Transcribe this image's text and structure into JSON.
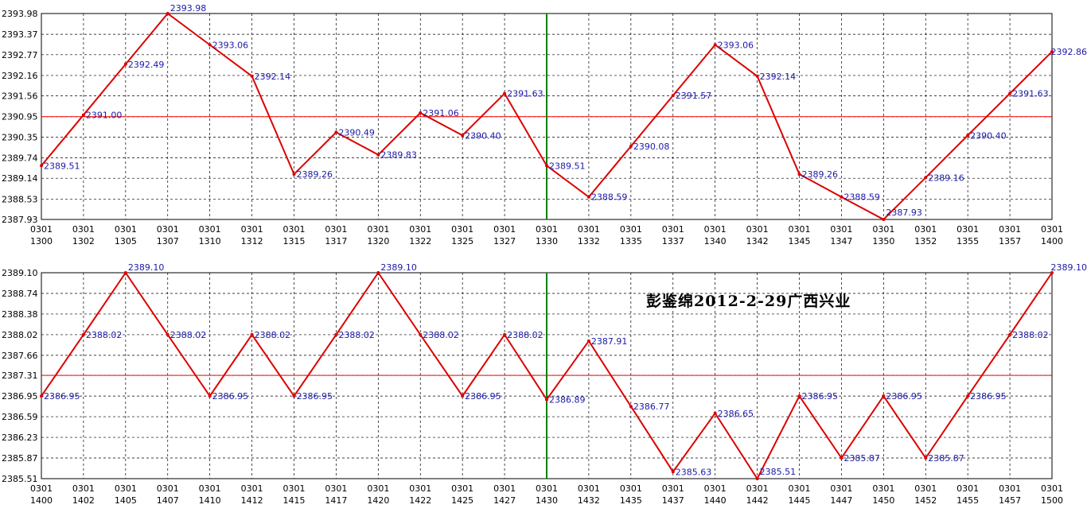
{
  "annotation": "彭鉴绵2012-2-29广西兴业",
  "colors": {
    "line": "#dd0000",
    "reference": "#ff0000",
    "midline": "#008000",
    "label": "#1a1aa8",
    "grid": "#000000"
  },
  "chart_data": [
    {
      "type": "line",
      "grid": true,
      "reference_line": 2390.95,
      "ylim": [
        2387.93,
        2393.98
      ],
      "yticks": [
        "2387.93",
        "2388.53",
        "2389.14",
        "2389.74",
        "2390.35",
        "2390.95",
        "2391.56",
        "2392.16",
        "2392.77",
        "2393.37",
        "2393.98"
      ],
      "xticks": [
        [
          "0301",
          "1300"
        ],
        [
          "0301",
          "1302"
        ],
        [
          "0301",
          "1305"
        ],
        [
          "0301",
          "1307"
        ],
        [
          "0301",
          "1310"
        ],
        [
          "0301",
          "1312"
        ],
        [
          "0301",
          "1315"
        ],
        [
          "0301",
          "1317"
        ],
        [
          "0301",
          "1320"
        ],
        [
          "0301",
          "1322"
        ],
        [
          "0301",
          "1325"
        ],
        [
          "0301",
          "1327"
        ],
        [
          "0301",
          "1330"
        ],
        [
          "0301",
          "1332"
        ],
        [
          "0301",
          "1335"
        ],
        [
          "0301",
          "1337"
        ],
        [
          "0301",
          "1340"
        ],
        [
          "0301",
          "1342"
        ],
        [
          "0301",
          "1345"
        ],
        [
          "0301",
          "1347"
        ],
        [
          "0301",
          "1350"
        ],
        [
          "0301",
          "1352"
        ],
        [
          "0301",
          "1355"
        ],
        [
          "0301",
          "1357"
        ],
        [
          "0301",
          "1400"
        ]
      ],
      "vertical_marker_index": 12,
      "series": [
        {
          "values": [
            2389.51,
            2391.0,
            2392.49,
            2393.98,
            2393.06,
            2392.14,
            2389.26,
            2390.49,
            2389.83,
            2391.06,
            2390.4,
            2391.63,
            2389.51,
            2388.59,
            2390.08,
            2391.57,
            2393.06,
            2392.14,
            2389.26,
            2388.59,
            2387.93,
            2389.16,
            2390.4,
            2391.63,
            2392.86
          ]
        }
      ],
      "labels": [
        "2389.51",
        "2391.00",
        "2392.49",
        "2393.98",
        "2393.06",
        "2392.14",
        "2389.26",
        "2390.49",
        "2389.83",
        "2391.06",
        "2390.40",
        "2391.63",
        "2389.51",
        "2388.59",
        "2390.08",
        "2391.57",
        "2393.06",
        "2392.14",
        "2389.26",
        "2388.59",
        "2387.93",
        "2389.16",
        "2390.40",
        "2391.63",
        "2392.86"
      ]
    },
    {
      "type": "line",
      "grid": true,
      "reference_line": 2387.31,
      "ylim": [
        2385.51,
        2389.1
      ],
      "yticks": [
        "2385.51",
        "2385.87",
        "2386.23",
        "2386.59",
        "2386.95",
        "2387.31",
        "2387.66",
        "2388.02",
        "2388.38",
        "2388.74",
        "2389.10"
      ],
      "xticks": [
        [
          "0301",
          "1400"
        ],
        [
          "0301",
          "1402"
        ],
        [
          "0301",
          "1405"
        ],
        [
          "0301",
          "1407"
        ],
        [
          "0301",
          "1410"
        ],
        [
          "0301",
          "1412"
        ],
        [
          "0301",
          "1415"
        ],
        [
          "0301",
          "1417"
        ],
        [
          "0301",
          "1420"
        ],
        [
          "0301",
          "1422"
        ],
        [
          "0301",
          "1425"
        ],
        [
          "0301",
          "1427"
        ],
        [
          "0301",
          "1430"
        ],
        [
          "0301",
          "1432"
        ],
        [
          "0301",
          "1435"
        ],
        [
          "0301",
          "1437"
        ],
        [
          "0301",
          "1440"
        ],
        [
          "0301",
          "1442"
        ],
        [
          "0301",
          "1445"
        ],
        [
          "0301",
          "1447"
        ],
        [
          "0301",
          "1450"
        ],
        [
          "0301",
          "1452"
        ],
        [
          "0301",
          "1455"
        ],
        [
          "0301",
          "1457"
        ],
        [
          "0301",
          "1500"
        ]
      ],
      "vertical_marker_index": 12,
      "series": [
        {
          "values": [
            2386.95,
            2388.02,
            2389.1,
            2388.02,
            2386.95,
            2388.02,
            2386.95,
            2388.02,
            2389.1,
            2388.02,
            2386.95,
            2388.02,
            2386.89,
            2387.91,
            2386.77,
            2385.63,
            2386.65,
            2385.51,
            2386.95,
            2385.87,
            2386.95,
            2385.87,
            2386.95,
            2388.02,
            2389.1
          ]
        }
      ],
      "labels": [
        "2386.95",
        "2388.02",
        "2389.10",
        "2388.02",
        "2386.95",
        "2388.02",
        "2386.95",
        "2388.02",
        "2389.10",
        "2388.02",
        "2386.95",
        "2388.02",
        "2386.89",
        "2387.91",
        "2386.77",
        "2385.63",
        "2386.65",
        "2385.51",
        "2386.95",
        "2385.87",
        "2386.95",
        "2385.87",
        "2386.95",
        "2388.02",
        "2389.10"
      ]
    }
  ]
}
